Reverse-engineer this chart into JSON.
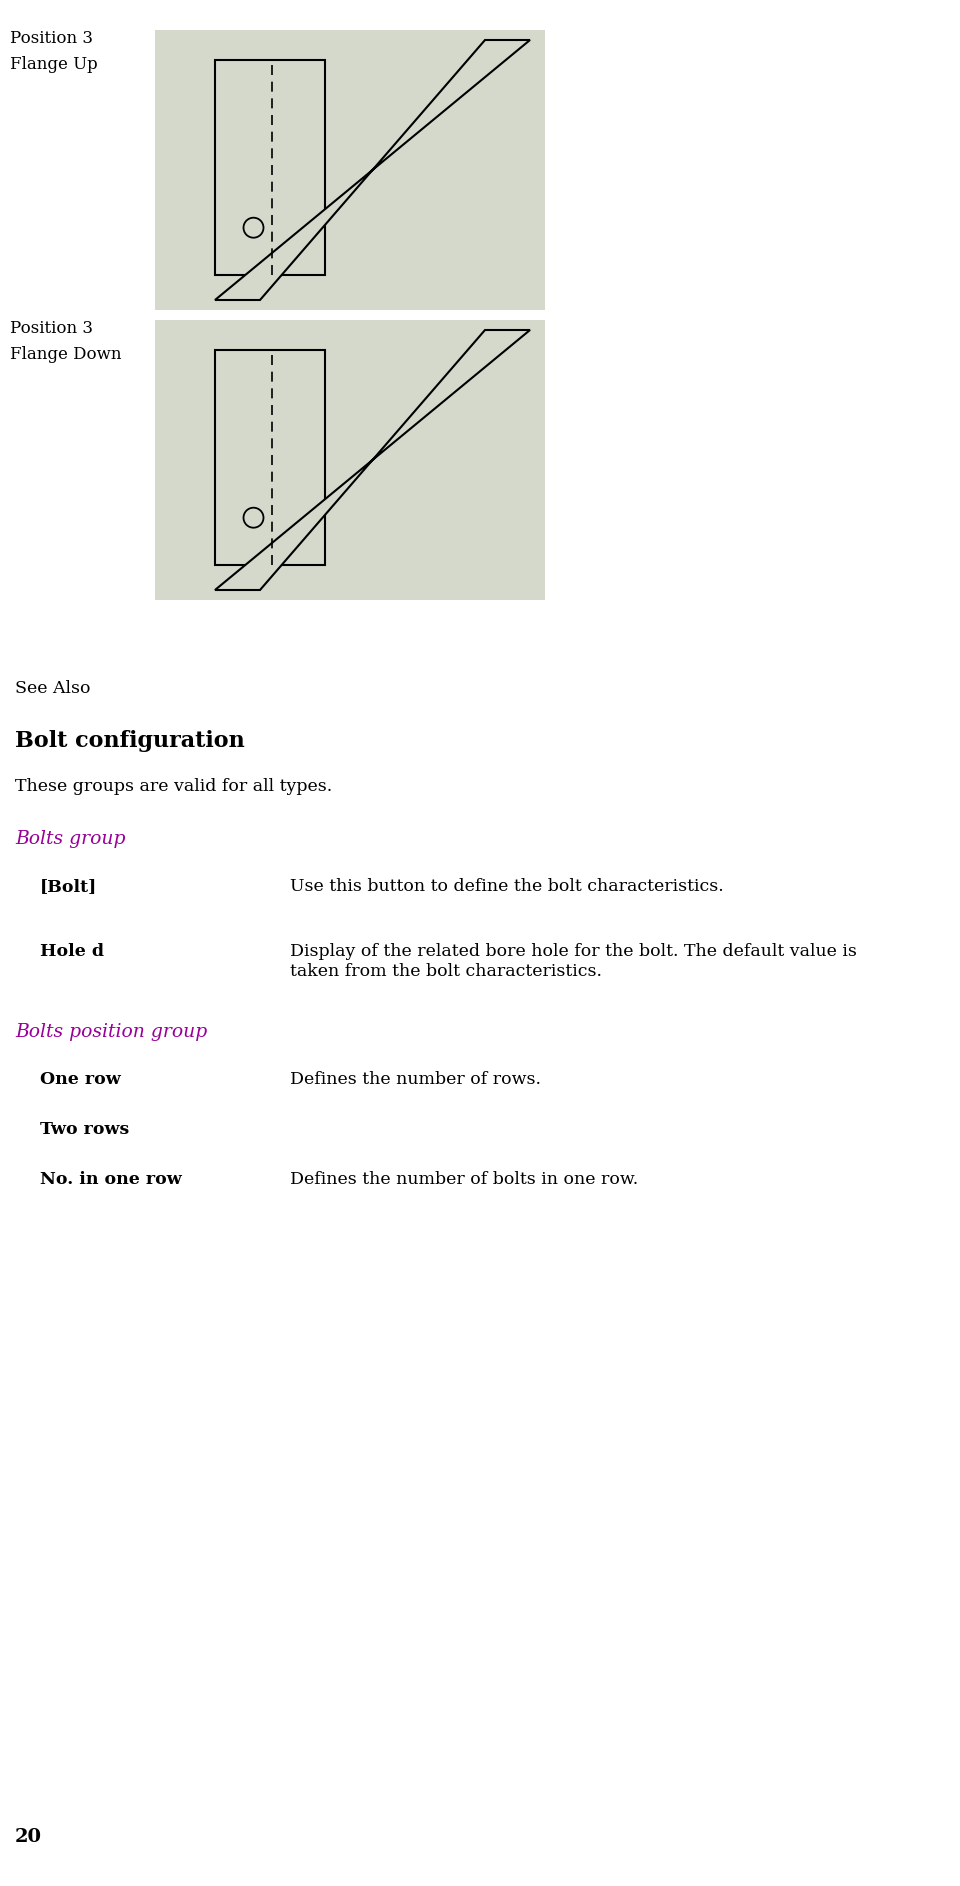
{
  "bg_color": "#ffffff",
  "diagram_bg": "#d4d9cc",
  "diagram_line_color": "#000000",
  "page_number": "20",
  "diagram1": {
    "label1": "Position 3",
    "label2": "Flange Up"
  },
  "diagram2": {
    "label1": "Position 3",
    "label2": "Flange Down"
  },
  "see_also_text": "See Also",
  "section_title": "Bolt configuration",
  "section_desc": "These groups are valid for all types.",
  "group1_title": "Bolts group",
  "group1_color": "#990099",
  "group1_items": [
    {
      "term": "[Bolt]",
      "desc": "Use this button to define the bolt characteristics."
    },
    {
      "term": "Hole d",
      "desc": "Display of the related bore hole for the bolt. The default value is\ntaken from the bolt characteristics."
    }
  ],
  "group2_title": "Bolts position group",
  "group2_color": "#990099",
  "group2_items": [
    {
      "term": "One row",
      "desc": "Defines the number of rows."
    },
    {
      "term": "Two rows",
      "desc": ""
    },
    {
      "term": "No. in one row",
      "desc": "Defines the number of bolts in one row."
    }
  ]
}
